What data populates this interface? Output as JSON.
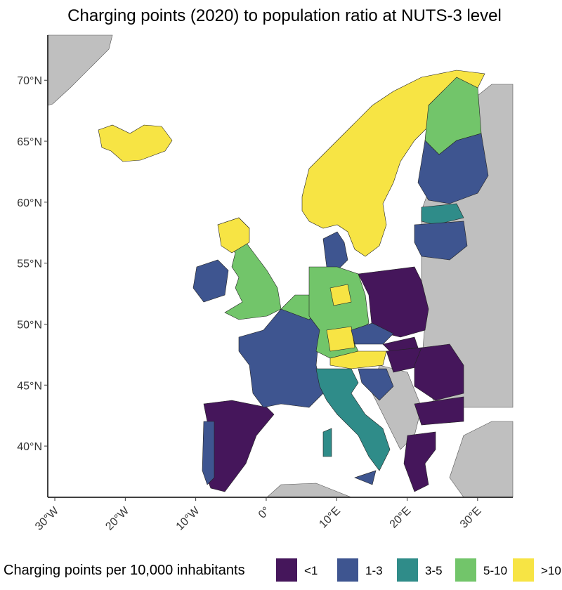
{
  "map": {
    "title": "Charging points (2020) to population ratio at NUTS-3 level",
    "xlim": [
      -31,
      35
    ],
    "ylim": [
      35.8,
      73.7
    ],
    "xticks": [
      {
        "value": -30,
        "label": "30°W"
      },
      {
        "value": -20,
        "label": "20°W"
      },
      {
        "value": -10,
        "label": "10°W"
      },
      {
        "value": 0,
        "label": "0°"
      },
      {
        "value": 10,
        "label": "10°E"
      },
      {
        "value": 20,
        "label": "20°E"
      },
      {
        "value": 30,
        "label": "30°E"
      }
    ],
    "yticks": [
      {
        "value": 40,
        "label": "40°N"
      },
      {
        "value": 45,
        "label": "45°N"
      },
      {
        "value": 50,
        "label": "50°N"
      },
      {
        "value": 55,
        "label": "55°N"
      },
      {
        "value": 60,
        "label": "60°N"
      },
      {
        "value": 65,
        "label": "65°N"
      },
      {
        "value": 70,
        "label": "70°N"
      }
    ],
    "legend": {
      "title": "Charging points per 10,000 inhabitants",
      "items": [
        {
          "label": "<1",
          "color": "#45165b"
        },
        {
          "label": "1-3",
          "color": "#3e5590"
        },
        {
          "label": "3-5",
          "color": "#2f8c89"
        },
        {
          "label": "5-10",
          "color": "#72c56a"
        },
        {
          "label": ">10",
          "color": "#f7e444"
        }
      ]
    }
  }
}
